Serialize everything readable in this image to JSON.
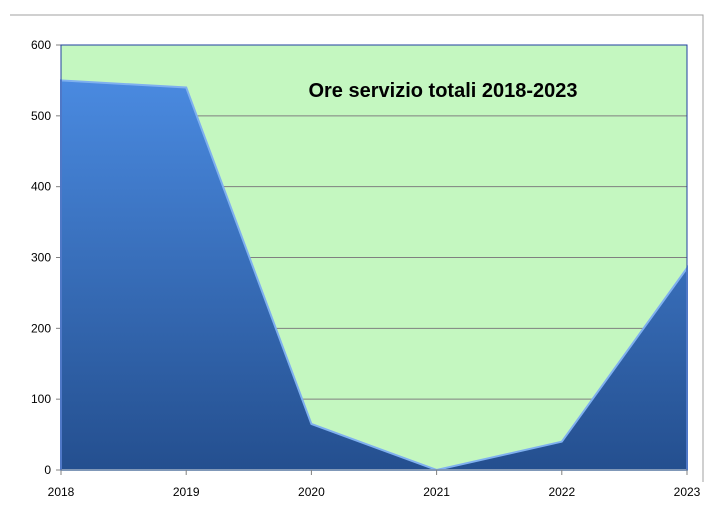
{
  "chart_data": {
    "type": "area",
    "title": "Ore servizio totali 2018-2023",
    "categories": [
      "2018",
      "2019",
      "2020",
      "2021",
      "2022",
      "2023"
    ],
    "series": [
      {
        "name": "Ore servizio",
        "color": "#3a72c0",
        "values": [
          550,
          540,
          65,
          0,
          40,
          285
        ]
      }
    ],
    "ylim": [
      0,
      600
    ],
    "yticks": [
      0,
      100,
      200,
      300,
      400,
      500,
      600
    ],
    "grid": true,
    "background": "#c4f7c0"
  }
}
